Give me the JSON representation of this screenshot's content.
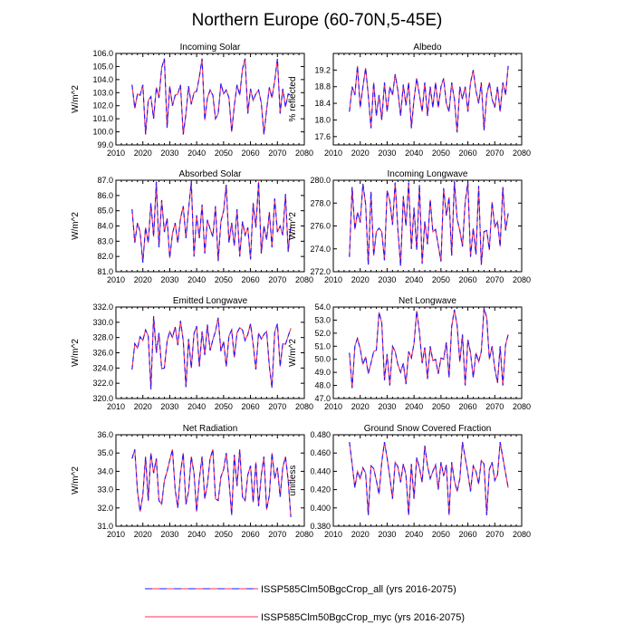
{
  "title": "Northern Europe (60-70N,5-45E)",
  "legend": [
    {
      "label": "ISSP585Clm50BgcCrop_all (yrs 2016-2075)",
      "color": "#1a1aff",
      "style": "dashed"
    },
    {
      "label": "ISSP585Clm50BgcCrop_myc (yrs 2016-2075)",
      "color": "#ff3355",
      "style": "solid"
    }
  ],
  "chart_data": [
    {
      "type": "line",
      "title": "Incoming Solar",
      "ylabel": "W/m^2",
      "xlabel": "",
      "xlim": [
        2010,
        2080
      ],
      "ylim": [
        99.0,
        106.0
      ],
      "xticks": [
        2010,
        2020,
        2030,
        2040,
        2050,
        2060,
        2070,
        2080
      ],
      "yticks": [
        99.0,
        100.0,
        101.0,
        102.0,
        103.0,
        104.0,
        105.0,
        106.0
      ],
      "ydecimals": 1,
      "x": [
        2016,
        2017,
        2018,
        2019,
        2020,
        2021,
        2022,
        2023,
        2024,
        2025,
        2026,
        2027,
        2028,
        2029,
        2030,
        2031,
        2032,
        2033,
        2034,
        2035,
        2036,
        2037,
        2038,
        2039,
        2040,
        2041,
        2042,
        2043,
        2044,
        2045,
        2046,
        2047,
        2048,
        2049,
        2050,
        2051,
        2052,
        2053,
        2054,
        2055,
        2056,
        2057,
        2058,
        2059,
        2060,
        2061,
        2062,
        2063,
        2064,
        2065,
        2066,
        2067,
        2068,
        2069,
        2070,
        2071,
        2072,
        2073,
        2074,
        2075
      ],
      "values": [
        103.6,
        101.8,
        102.9,
        102.8,
        103.6,
        99.8,
        102.4,
        102.7,
        101.0,
        103.4,
        102.6,
        104.9,
        105.6,
        100.3,
        103.5,
        102.0,
        102.8,
        102.9,
        103.6,
        99.8,
        101.4,
        103.5,
        102.1,
        103.0,
        103.1,
        104.2,
        105.6,
        100.9,
        102.6,
        103.2,
        102.8,
        101.0,
        101.4,
        103.7,
        102.9,
        103.2,
        102.6,
        100.0,
        102.0,
        103.6,
        102.8,
        104.8,
        105.6,
        101.4,
        103.3,
        102.4,
        102.9,
        103.2,
        102.2,
        99.8,
        101.7,
        103.4,
        102.6,
        103.9,
        105.6,
        101.4,
        103.3,
        101.9,
        102.9,
        102.8
      ]
    },
    {
      "type": "line",
      "title": "Albedo",
      "ylabel": "% reflected",
      "xlabel": "",
      "xlim": [
        2010,
        2080
      ],
      "ylim": [
        17.4,
        19.6
      ],
      "xticks": [
        2010,
        2020,
        2030,
        2040,
        2050,
        2060,
        2070,
        2080
      ],
      "yticks": [
        17.6,
        18.0,
        18.4,
        18.8,
        19.2
      ],
      "ydecimals": 1,
      "x": [
        2016,
        2017,
        2018,
        2019,
        2020,
        2021,
        2022,
        2023,
        2024,
        2025,
        2026,
        2027,
        2028,
        2029,
        2030,
        2031,
        2032,
        2033,
        2034,
        2035,
        2036,
        2037,
        2038,
        2039,
        2040,
        2041,
        2042,
        2043,
        2044,
        2045,
        2046,
        2047,
        2048,
        2049,
        2050,
        2051,
        2052,
        2053,
        2054,
        2055,
        2056,
        2057,
        2058,
        2059,
        2060,
        2061,
        2062,
        2063,
        2064,
        2065,
        2066,
        2067,
        2068,
        2069,
        2070,
        2071,
        2072,
        2073,
        2074,
        2075
      ],
      "values": [
        18.2,
        18.8,
        18.6,
        19.3,
        18.3,
        18.8,
        19.25,
        18.6,
        17.8,
        18.9,
        18.1,
        18.6,
        18.0,
        18.9,
        18.2,
        18.8,
        18.6,
        19.1,
        18.7,
        18.1,
        18.85,
        18.35,
        18.9,
        17.8,
        18.5,
        19.0,
        18.6,
        18.2,
        18.9,
        18.1,
        18.8,
        18.3,
        18.9,
        18.3,
        18.8,
        19.0,
        18.4,
        18.2,
        18.9,
        18.5,
        17.7,
        18.8,
        18.5,
        18.8,
        18.2,
        18.9,
        19.2,
        18.7,
        18.4,
        18.9,
        17.75,
        18.6,
        18.9,
        18.5,
        18.3,
        18.8,
        18.2,
        18.9,
        18.6,
        19.3
      ]
    },
    {
      "type": "line",
      "title": "Absorbed Solar",
      "ylabel": "W/m^2",
      "xlabel": "",
      "xlim": [
        2010,
        2080
      ],
      "ylim": [
        81.0,
        87.0
      ],
      "xticks": [
        2010,
        2020,
        2030,
        2040,
        2050,
        2060,
        2070,
        2080
      ],
      "yticks": [
        81.0,
        82.0,
        83.0,
        84.0,
        85.0,
        86.0,
        87.0
      ],
      "ydecimals": 1,
      "x": [
        2016,
        2017,
        2018,
        2019,
        2020,
        2021,
        2022,
        2023,
        2024,
        2025,
        2026,
        2027,
        2028,
        2029,
        2030,
        2031,
        2032,
        2033,
        2034,
        2035,
        2036,
        2037,
        2038,
        2039,
        2040,
        2041,
        2042,
        2043,
        2044,
        2045,
        2046,
        2047,
        2048,
        2049,
        2050,
        2051,
        2052,
        2053,
        2054,
        2055,
        2056,
        2057,
        2058,
        2059,
        2060,
        2061,
        2062,
        2063,
        2064,
        2065,
        2066,
        2067,
        2068,
        2069,
        2070,
        2071,
        2072,
        2073,
        2074,
        2075
      ],
      "values": [
        85.1,
        82.9,
        84.2,
        83.6,
        81.6,
        83.9,
        82.9,
        85.5,
        83.3,
        86.9,
        82.6,
        85.7,
        83.6,
        84.5,
        81.9,
        83.5,
        84.2,
        82.9,
        84.5,
        85.3,
        83.2,
        85.1,
        86.9,
        82.0,
        84.7,
        83.2,
        85.4,
        82.2,
        84.4,
        83.8,
        83.3,
        85.3,
        81.7,
        84.3,
        85.0,
        86.7,
        82.9,
        84.2,
        82.7,
        85.1,
        82.0,
        84.3,
        83.4,
        83.9,
        81.8,
        85.5,
        83.9,
        86.9,
        82.2,
        84.0,
        83.1,
        84.9,
        82.6,
        85.8,
        83.6,
        84.0,
        83.4,
        86.1,
        82.3,
        84.1
      ]
    },
    {
      "type": "line",
      "title": "Incoming Longwave",
      "ylabel": "W/m^2",
      "xlabel": "",
      "xlim": [
        2010,
        2080
      ],
      "ylim": [
        272.0,
        280.0
      ],
      "xticks": [
        2010,
        2020,
        2030,
        2040,
        2050,
        2060,
        2070,
        2080
      ],
      "yticks": [
        272.0,
        274.0,
        276.0,
        278.0,
        280.0
      ],
      "ydecimals": 1,
      "x": [
        2016,
        2017,
        2018,
        2019,
        2020,
        2021,
        2022,
        2023,
        2024,
        2025,
        2026,
        2027,
        2028,
        2029,
        2030,
        2031,
        2032,
        2033,
        2034,
        2035,
        2036,
        2037,
        2038,
        2039,
        2040,
        2041,
        2042,
        2043,
        2044,
        2045,
        2046,
        2047,
        2048,
        2049,
        2050,
        2051,
        2052,
        2053,
        2054,
        2055,
        2056,
        2057,
        2058,
        2059,
        2060,
        2061,
        2062,
        2063,
        2064,
        2065,
        2066,
        2067,
        2068,
        2069,
        2070,
        2071,
        2072,
        2073,
        2074,
        2075
      ],
      "values": [
        273.3,
        279.4,
        275.7,
        277.2,
        276.3,
        279.7,
        277.9,
        272.6,
        279.0,
        273.4,
        275.5,
        275.8,
        275.5,
        273.0,
        279.1,
        278.2,
        276.1,
        279.8,
        275.7,
        272.5,
        278.6,
        276.0,
        279.8,
        274.0,
        277.6,
        273.9,
        279.6,
        272.7,
        276.4,
        274.4,
        278.3,
        275.5,
        275.7,
        274.3,
        272.9,
        279.3,
        276.9,
        278.5,
        273.4,
        279.9,
        276.6,
        275.6,
        274.2,
        278.1,
        279.8,
        273.3,
        275.8,
        273.5,
        279.5,
        272.6,
        275.5,
        275.6,
        273.9,
        278.1,
        275.9,
        276.4,
        274.2,
        279.4,
        275.6,
        277.1
      ]
    },
    {
      "type": "line",
      "title": "Emitted Longwave",
      "ylabel": "W/m^2",
      "xlabel": "",
      "xlim": [
        2010,
        2080
      ],
      "ylim": [
        320.0,
        332.0
      ],
      "xticks": [
        2010,
        2020,
        2030,
        2040,
        2050,
        2060,
        2070,
        2080
      ],
      "yticks": [
        320.0,
        322.0,
        324.0,
        326.0,
        328.0,
        330.0,
        332.0
      ],
      "ydecimals": 1,
      "x": [
        2016,
        2017,
        2018,
        2019,
        2020,
        2021,
        2022,
        2023,
        2024,
        2025,
        2026,
        2027,
        2028,
        2029,
        2030,
        2031,
        2032,
        2033,
        2034,
        2035,
        2036,
        2037,
        2038,
        2039,
        2040,
        2041,
        2042,
        2043,
        2044,
        2045,
        2046,
        2047,
        2048,
        2049,
        2050,
        2051,
        2052,
        2053,
        2054,
        2055,
        2056,
        2057,
        2058,
        2059,
        2060,
        2061,
        2062,
        2063,
        2064,
        2065,
        2066,
        2067,
        2068,
        2069,
        2070,
        2071,
        2072,
        2073,
        2074,
        2075
      ],
      "values": [
        323.8,
        327.2,
        326.6,
        328.1,
        327.6,
        329.0,
        328.2,
        321.2,
        330.8,
        326.0,
        328.6,
        323.9,
        324.0,
        327.5,
        328.8,
        328.0,
        329.4,
        327.0,
        330.2,
        327.6,
        321.5,
        327.8,
        324.0,
        328.5,
        329.5,
        324.2,
        328.8,
        325.7,
        329.7,
        326.3,
        327.7,
        328.8,
        330.6,
        326.2,
        327.5,
        324.2,
        328.2,
        329.0,
        325.4,
        328.6,
        329.3,
        329.0,
        327.6,
        328.4,
        329.8,
        327.1,
        323.8,
        328.6,
        327.8,
        328.4,
        328.8,
        324.2,
        321.4,
        328.7,
        329.8,
        324.2,
        327.2,
        327.1,
        328.2,
        329.2
      ]
    },
    {
      "type": "line",
      "title": "Net Longwave",
      "ylabel": "W/m^2",
      "xlabel": "",
      "xlim": [
        2010,
        2080
      ],
      "ylim": [
        47.0,
        54.0
      ],
      "xticks": [
        2010,
        2020,
        2030,
        2040,
        2050,
        2060,
        2070,
        2080
      ],
      "yticks": [
        47.0,
        48.0,
        49.0,
        50.0,
        51.0,
        52.0,
        53.0,
        54.0
      ],
      "ydecimals": 1,
      "x": [
        2016,
        2017,
        2018,
        2019,
        2020,
        2021,
        2022,
        2023,
        2024,
        2025,
        2026,
        2027,
        2028,
        2029,
        2030,
        2031,
        2032,
        2033,
        2034,
        2035,
        2036,
        2037,
        2038,
        2039,
        2040,
        2041,
        2042,
        2043,
        2044,
        2045,
        2046,
        2047,
        2048,
        2049,
        2050,
        2051,
        2052,
        2053,
        2054,
        2055,
        2056,
        2057,
        2058,
        2059,
        2060,
        2061,
        2062,
        2063,
        2064,
        2065,
        2066,
        2067,
        2068,
        2069,
        2070,
        2071,
        2072,
        2073,
        2074,
        2075
      ],
      "values": [
        50.5,
        47.8,
        51.0,
        51.6,
        50.8,
        49.6,
        50.2,
        48.9,
        49.7,
        50.6,
        50.7,
        53.6,
        52.8,
        48.4,
        50.4,
        48.0,
        51.0,
        50.6,
        49.6,
        49.0,
        49.7,
        48.1,
        50.6,
        50.1,
        51.2,
        53.7,
        52.1,
        49.7,
        50.9,
        48.5,
        51.0,
        49.9,
        50.0,
        48.9,
        50.1,
        50.0,
        51.3,
        48.6,
        52.5,
        53.8,
        52.6,
        49.8,
        51.9,
        48.0,
        51.5,
        50.5,
        48.6,
        50.5,
        49.8,
        50.6,
        53.9,
        53.2,
        50.0,
        51.0,
        49.3,
        48.2,
        51.0,
        48.0,
        51.1,
        51.9
      ]
    },
    {
      "type": "line",
      "title": "Net Radiation",
      "ylabel": "W/m^2",
      "xlabel": "",
      "xlim": [
        2010,
        2080
      ],
      "ylim": [
        31.0,
        36.0
      ],
      "xticks": [
        2010,
        2020,
        2030,
        2040,
        2050,
        2060,
        2070,
        2080
      ],
      "yticks": [
        31.0,
        32.0,
        33.0,
        34.0,
        35.0,
        36.0
      ],
      "ydecimals": 1,
      "x": [
        2016,
        2017,
        2018,
        2019,
        2020,
        2021,
        2022,
        2023,
        2024,
        2025,
        2026,
        2027,
        2028,
        2029,
        2030,
        2031,
        2032,
        2033,
        2034,
        2035,
        2036,
        2037,
        2038,
        2039,
        2040,
        2041,
        2042,
        2043,
        2044,
        2045,
        2046,
        2047,
        2048,
        2049,
        2050,
        2051,
        2052,
        2053,
        2054,
        2055,
        2056,
        2057,
        2058,
        2059,
        2060,
        2061,
        2062,
        2063,
        2064,
        2065,
        2066,
        2067,
        2068,
        2069,
        2070,
        2071,
        2072,
        2073,
        2074,
        2075
      ],
      "values": [
        34.7,
        35.2,
        32.9,
        31.8,
        32.7,
        34.8,
        32.4,
        35.0,
        33.9,
        34.7,
        32.4,
        32.2,
        33.5,
        34.0,
        34.6,
        35.2,
        33.0,
        32.0,
        33.9,
        35.0,
        32.2,
        32.9,
        34.8,
        33.9,
        31.8,
        33.6,
        34.8,
        32.5,
        33.3,
        34.7,
        35.2,
        32.5,
        32.4,
        33.7,
        34.1,
        35.0,
        33.5,
        31.6,
        34.9,
        33.2,
        35.2,
        32.6,
        32.4,
        33.8,
        34.3,
        32.3,
        34.5,
        32.1,
        33.8,
        34.8,
        31.9,
        32.7,
        35.0,
        33.6,
        34.2,
        32.6,
        34.2,
        34.8,
        33.5,
        31.5
      ]
    },
    {
      "type": "line",
      "title": "Ground Snow Covered Fraction",
      "ylabel": "unitless",
      "xlabel": "",
      "xlim": [
        2010,
        2080
      ],
      "ylim": [
        0.38,
        0.48
      ],
      "xticks": [
        2010,
        2020,
        2030,
        2040,
        2050,
        2060,
        2070,
        2080
      ],
      "yticks": [
        0.38,
        0.4,
        0.42,
        0.44,
        0.46,
        0.48
      ],
      "ydecimals": 3,
      "x": [
        2016,
        2017,
        2018,
        2019,
        2020,
        2021,
        2022,
        2023,
        2024,
        2025,
        2026,
        2027,
        2028,
        2029,
        2030,
        2031,
        2032,
        2033,
        2034,
        2035,
        2036,
        2037,
        2038,
        2039,
        2040,
        2041,
        2042,
        2043,
        2044,
        2045,
        2046,
        2047,
        2048,
        2049,
        2050,
        2051,
        2052,
        2053,
        2054,
        2055,
        2056,
        2057,
        2058,
        2059,
        2060,
        2061,
        2062,
        2063,
        2064,
        2065,
        2066,
        2067,
        2068,
        2069,
        2070,
        2071,
        2072,
        2073,
        2074,
        2075
      ],
      "values": [
        0.472,
        0.448,
        0.422,
        0.44,
        0.432,
        0.444,
        0.438,
        0.392,
        0.446,
        0.443,
        0.43,
        0.415,
        0.45,
        0.472,
        0.455,
        0.434,
        0.41,
        0.45,
        0.445,
        0.428,
        0.448,
        0.436,
        0.392,
        0.448,
        0.41,
        0.455,
        0.444,
        0.428,
        0.468,
        0.446,
        0.432,
        0.44,
        0.447,
        0.42,
        0.45,
        0.435,
        0.447,
        0.392,
        0.45,
        0.43,
        0.418,
        0.432,
        0.472,
        0.455,
        0.438,
        0.418,
        0.446,
        0.44,
        0.426,
        0.452,
        0.448,
        0.392,
        0.442,
        0.45,
        0.43,
        0.436,
        0.472,
        0.455,
        0.438,
        0.422
      ]
    }
  ]
}
